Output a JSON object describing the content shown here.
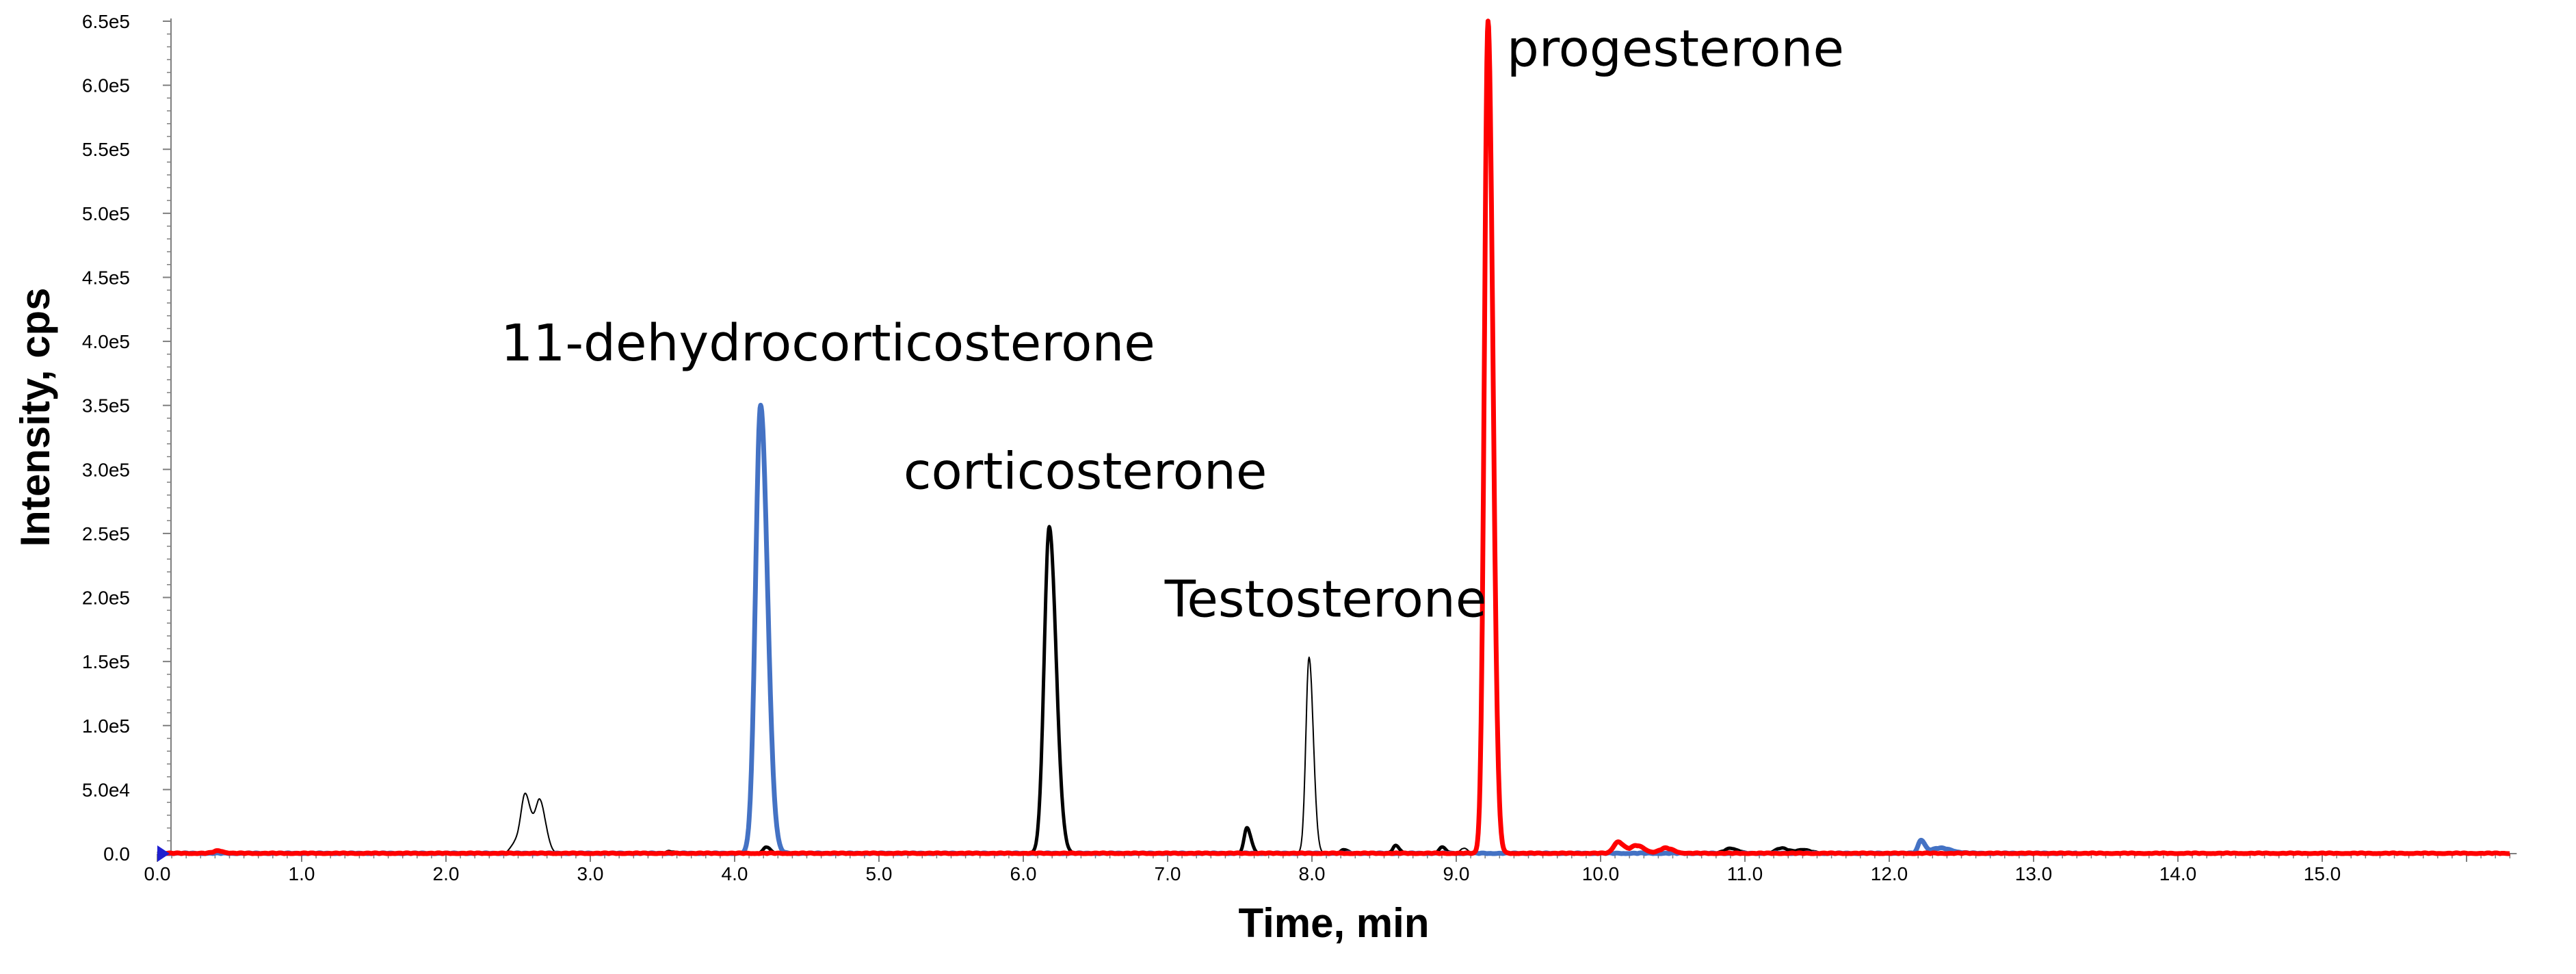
{
  "chart_data": {
    "type": "line",
    "title": "",
    "xlabel": "Time, min",
    "ylabel": "Intensity, cps",
    "xlim": [
      0.0,
      16.3
    ],
    "ylim": [
      0,
      650000
    ],
    "grid": false,
    "x_ticks": [
      0.0,
      1.0,
      2.0,
      3.0,
      4.0,
      5.0,
      6.0,
      7.0,
      8.0,
      9.0,
      10.0,
      11.0,
      12.0,
      13.0,
      14.0,
      15.0
    ],
    "x_tick_labels": [
      "0.0",
      "1.0",
      "2.0",
      "3.0",
      "4.0",
      "5.0",
      "6.0",
      "7.0",
      "8.0",
      "9.0",
      "10.0",
      "11.0",
      "12.0",
      "13.0",
      "14.0",
      "15.0"
    ],
    "y_ticks": [
      0,
      50000,
      100000,
      150000,
      200000,
      250000,
      300000,
      350000,
      400000,
      450000,
      500000,
      550000,
      600000,
      650000
    ],
    "y_tick_labels": [
      "0.0",
      "5.0e4",
      "1.0e5",
      "1.5e5",
      "2.0e5",
      "2.5e5",
      "3.0e5",
      "3.5e5",
      "4.0e5",
      "4.5e5",
      "5.0e5",
      "5.5e5",
      "6.0e5",
      "6.5e5"
    ],
    "series": [
      {
        "color": "#000000",
        "stroke": 2,
        "peaks": [
          [
            2.55,
            45000,
            0.03
          ],
          [
            2.65,
            40000,
            0.03
          ],
          [
            2.48,
            8000,
            0.03
          ],
          [
            7.98,
            153000,
            0.022
          ],
          [
            3.55,
            2000,
            0.03
          ],
          [
            9.05,
            4000,
            0.02
          ]
        ],
        "xmax": 13.3
      },
      {
        "color": "#000000",
        "stroke": 5,
        "peaks": [
          [
            6.18,
            255000,
            0.035
          ],
          [
            7.55,
            20000,
            0.02
          ],
          [
            4.22,
            5000,
            0.02
          ],
          [
            8.22,
            3000,
            0.02
          ],
          [
            8.58,
            6000,
            0.02
          ],
          [
            8.9,
            5000,
            0.02
          ],
          [
            10.9,
            4000,
            0.04
          ],
          [
            11.25,
            4000,
            0.04
          ],
          [
            11.4,
            3000,
            0.04
          ]
        ],
        "xmax": 13.3
      },
      {
        "color": "#4472c4",
        "stroke": 7,
        "peaks": [
          [
            4.18,
            350000,
            0.035
          ],
          [
            12.22,
            10000,
            0.02
          ],
          [
            12.35,
            4000,
            0.06
          ]
        ],
        "xmax": 13.3
      },
      {
        "color": "#ff0000",
        "stroke": 7,
        "peaks": [
          [
            9.22,
            650000,
            0.025
          ],
          [
            10.12,
            9000,
            0.03
          ],
          [
            10.25,
            6000,
            0.04
          ],
          [
            10.45,
            4000,
            0.04
          ],
          [
            0.42,
            2000,
            0.03
          ]
        ],
        "xmax": 16.3
      }
    ],
    "annotations": [
      {
        "text": "11-dehydrocorticosterone",
        "x": 2.38,
        "y": 385000
      },
      {
        "text": "corticosterone",
        "x": 5.17,
        "y": 285000
      },
      {
        "text": "Testosterone",
        "x": 6.98,
        "y": 185000
      },
      {
        "text": "progesterone",
        "x": 9.35,
        "y": 615000
      }
    ]
  }
}
